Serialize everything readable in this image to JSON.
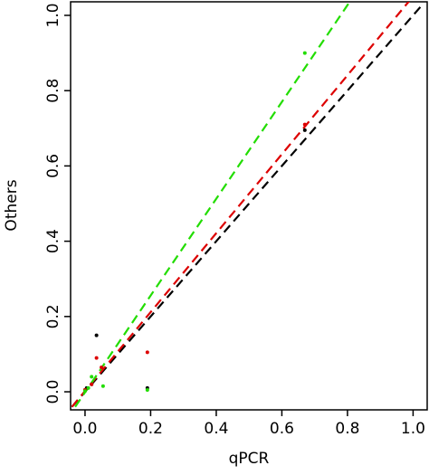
{
  "chart_data": {
    "type": "scatter",
    "x_label": "qPCR",
    "y_label": "Others",
    "xlim": [
      -0.044,
      1.043
    ],
    "ylim": [
      -0.048,
      1.036
    ],
    "xticks": [
      {
        "value": 0,
        "label": "0.0"
      },
      0.2,
      0.4,
      0.6,
      0.8,
      {
        "value": 1,
        "label": "1.0"
      }
    ],
    "yticks": [
      {
        "value": 0,
        "label": "0.0"
      },
      0.2,
      0.4,
      0.6,
      0.8,
      {
        "value": 1,
        "label": "1.0"
      }
    ],
    "lines": [
      {
        "color": "#000000",
        "x": [
          -0.04,
          1.03
        ],
        "values": [
          -0.04,
          1.03
        ]
      },
      {
        "color": "#dd0000",
        "x": [
          -0.04,
          0.99
        ],
        "values": [
          -0.04,
          1.04
        ]
      },
      {
        "color": "#22dd00",
        "x": [
          -0.03,
          0.81
        ],
        "values": [
          -0.04,
          1.04
        ]
      }
    ],
    "series": [
      {
        "color": "#000000",
        "x": [
          0,
          0.005,
          0.02,
          0.035,
          0.19,
          0.67
        ],
        "values": [
          0.005,
          0.01,
          0.02,
          0.15,
          0.01,
          0.695
        ]
      },
      {
        "color": "#dd0000",
        "x": [
          0,
          0.02,
          0.035,
          0.05,
          0.19,
          0.67
        ],
        "values": [
          0.005,
          0.02,
          0.09,
          0.065,
          0.105,
          0.71
        ]
      },
      {
        "color": "#22dd00",
        "x": [
          0,
          0.01,
          0.02,
          0.055,
          0.19,
          0.67
        ],
        "values": [
          0.002,
          0.01,
          0.04,
          0.015,
          0.005,
          0.9
        ]
      }
    ]
  }
}
